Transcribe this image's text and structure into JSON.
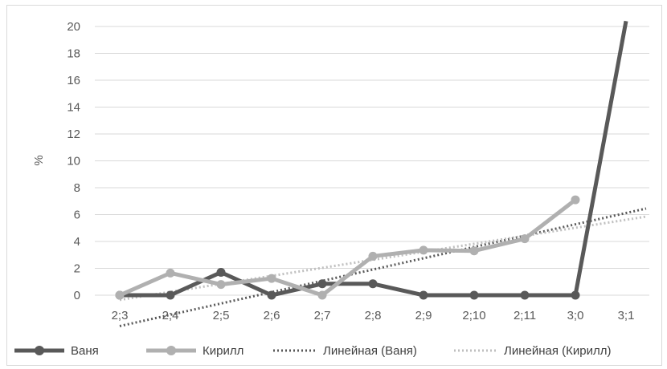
{
  "chart_data": {
    "type": "line",
    "title": "",
    "xlabel": "",
    "ylabel": "%",
    "ylim": [
      0,
      20
    ],
    "yticks": [
      0,
      2,
      4,
      6,
      8,
      10,
      12,
      14,
      16,
      18,
      20
    ],
    "categories": [
      "2;3",
      "2;4",
      "2;5",
      "2;6",
      "2;7",
      "2;8",
      "2;9",
      "2;10",
      "2;11",
      "3;0",
      "3;1"
    ],
    "series": [
      {
        "name": "Ваня",
        "color": "#595959",
        "style": "solid-markers",
        "values": [
          0,
          0,
          1.7,
          0,
          0.85,
          0.85,
          0,
          0,
          0,
          0,
          20.4
        ]
      },
      {
        "name": "Кирилл",
        "color": "#b0b0b0",
        "style": "solid-markers",
        "values": [
          0,
          1.65,
          0.8,
          1.25,
          0,
          2.9,
          3.35,
          3.3,
          4.2,
          7.1,
          null
        ]
      }
    ],
    "trendlines": [
      {
        "name": "Линейная (Ваня)",
        "color": "#595959",
        "style": "dotted",
        "start": -2.3,
        "end": 6.45
      },
      {
        "name": "Линейная (Кирилл)",
        "color": "#bfbfbf",
        "style": "dotted",
        "start": -0.35,
        "end": 5.85
      }
    ],
    "grid": true,
    "legend_position": "bottom"
  }
}
